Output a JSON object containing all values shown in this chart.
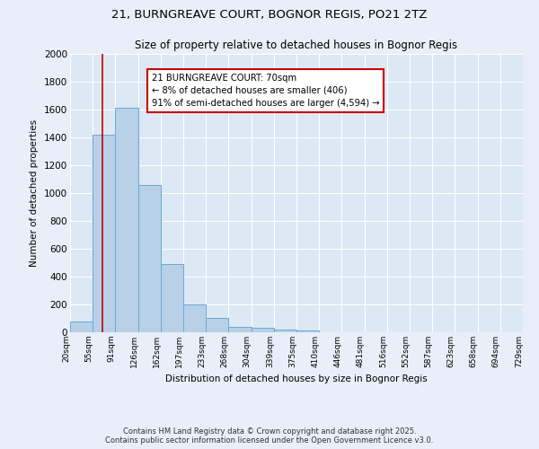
{
  "title_line1": "21, BURNGREAVE COURT, BOGNOR REGIS, PO21 2TZ",
  "title_line2": "Size of property relative to detached houses in Bognor Regis",
  "xlabel": "Distribution of detached houses by size in Bognor Regis",
  "ylabel": "Number of detached properties",
  "bar_values": [
    80,
    1420,
    1610,
    1055,
    490,
    200,
    105,
    40,
    30,
    20,
    15,
    0,
    0,
    0,
    0,
    0,
    0,
    0,
    0,
    0
  ],
  "bin_labels": [
    "20sqm",
    "55sqm",
    "91sqm",
    "126sqm",
    "162sqm",
    "197sqm",
    "233sqm",
    "268sqm",
    "304sqm",
    "339sqm",
    "375sqm",
    "410sqm",
    "446sqm",
    "481sqm",
    "516sqm",
    "552sqm",
    "587sqm",
    "623sqm",
    "658sqm",
    "694sqm",
    "729sqm"
  ],
  "bar_color": "#b8d0e8",
  "bar_edge_color": "#6aaad4",
  "annotation_text": "21 BURNGREAVE COURT: 70sqm\n← 8% of detached houses are smaller (406)\n91% of semi-detached houses are larger (4,594) →",
  "annotation_box_color": "#ffffff",
  "annotation_box_edge": "#cc0000",
  "red_line_color": "#cc0000",
  "ylim": [
    0,
    2000
  ],
  "yticks": [
    0,
    200,
    400,
    600,
    800,
    1000,
    1200,
    1400,
    1600,
    1800,
    2000
  ],
  "footer_line1": "Contains HM Land Registry data © Crown copyright and database right 2025.",
  "footer_line2": "Contains public sector information licensed under the Open Government Licence v3.0.",
  "bg_color": "#e8eff8",
  "plot_bg_color": "#dce8f4",
  "grid_color": "#ffffff"
}
